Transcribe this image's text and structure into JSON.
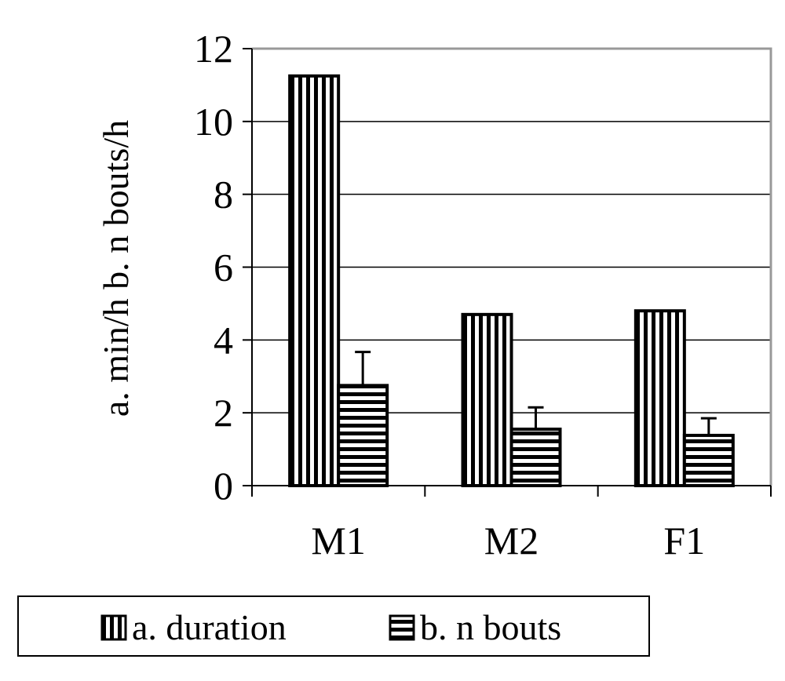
{
  "chart_data": {
    "type": "bar",
    "categories": [
      "M1",
      "M2",
      "F1"
    ],
    "series": [
      {
        "name": "a. duration",
        "values": [
          11.25,
          4.7,
          4.8
        ],
        "pattern": "vertical-lines"
      },
      {
        "name": "b. n bouts",
        "values": [
          2.75,
          1.55,
          1.38
        ],
        "error": [
          0.92,
          0.6,
          0.47
        ],
        "pattern": "horizontal-lines"
      }
    ],
    "title": "",
    "xlabel": "",
    "ylabel": "a. min/h  b. n bouts/h",
    "ylim": [
      0,
      12
    ],
    "yticks": [
      0,
      2,
      4,
      6,
      8,
      10,
      12
    ],
    "grid": true,
    "legend_placement": "bottom"
  },
  "colors": {
    "bar_stroke": "#000000",
    "bar_fill": "#ffffff",
    "gridline": "#000000",
    "plot_border": "#999999"
  }
}
